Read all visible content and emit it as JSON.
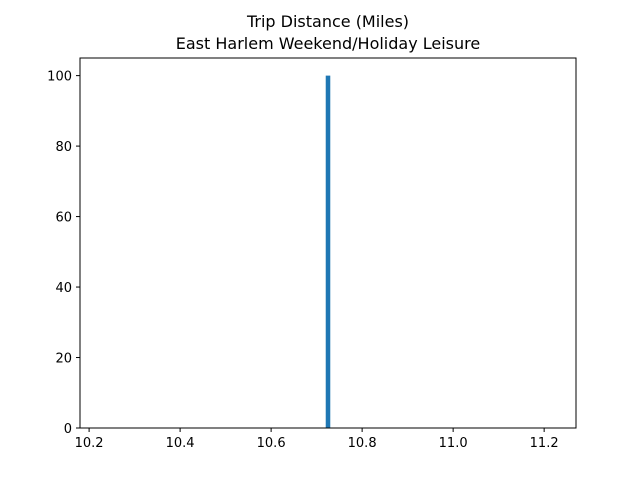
{
  "chart_data": {
    "type": "bar",
    "title": "Trip Distance (Miles)",
    "subtitle": "East Harlem Weekend/Holiday Leisure",
    "xlabel": "",
    "ylabel": "",
    "xlim": [
      10.18,
      11.27
    ],
    "ylim": [
      0,
      105
    ],
    "xticks": [
      10.2,
      10.4,
      10.6,
      10.8,
      11.0,
      11.2
    ],
    "xtick_labels": [
      "10.2",
      "10.4",
      "10.6",
      "10.8",
      "11.0",
      "11.2"
    ],
    "yticks": [
      0,
      20,
      40,
      60,
      80,
      100
    ],
    "ytick_labels": [
      "0",
      "20",
      "40",
      "60",
      "80",
      "100"
    ],
    "bins": [
      {
        "x_start": 10.72,
        "x_end": 10.73,
        "count": 100
      }
    ],
    "bar_color": "#1f77b4",
    "grid": false,
    "legend": "none"
  }
}
